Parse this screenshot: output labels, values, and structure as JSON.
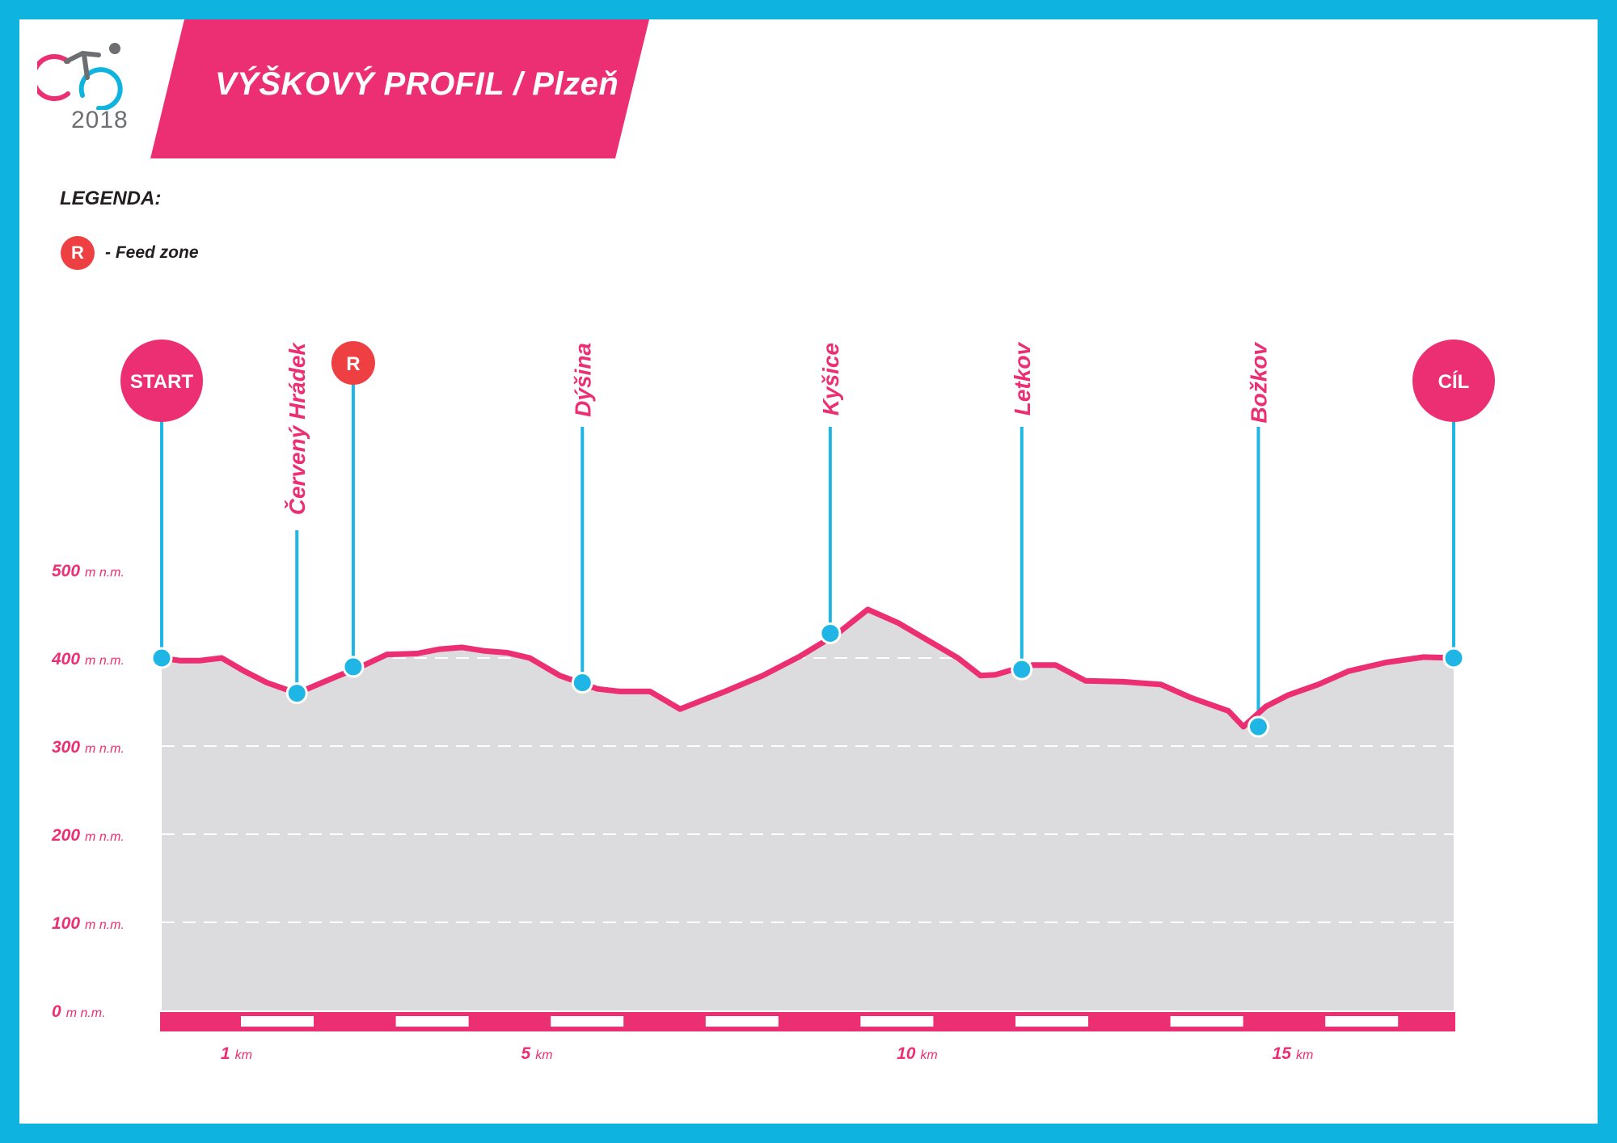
{
  "header": {
    "title": "VÝŠKOVÝ PROFIL / Plzeň",
    "logo_year": "2018"
  },
  "legend": {
    "title": "LEGENDA:",
    "feed_badge": "R",
    "feed_label": "- Feed zone"
  },
  "colors": {
    "frame": "#0fb3e0",
    "accent": "#ec2f73",
    "feed": "#ee3f43",
    "profile_fill": "#dcdcde",
    "marker": "#1fb6e6"
  },
  "chart_data": {
    "type": "area",
    "title": "VÝŠKOVÝ PROFIL / Plzeň",
    "xlabel": "km",
    "ylabel": "m n.m.",
    "xlim": [
      0,
      17.2
    ],
    "ylim": [
      0,
      500
    ],
    "y_ticks": [
      {
        "value": 0,
        "num": "0",
        "unit": "m n.m."
      },
      {
        "value": 100,
        "num": "100",
        "unit": "m n.m."
      },
      {
        "value": 200,
        "num": "200",
        "unit": "m n.m."
      },
      {
        "value": 300,
        "num": "300",
        "unit": "m n.m."
      },
      {
        "value": 400,
        "num": "400",
        "unit": "m n.m."
      },
      {
        "value": 500,
        "num": "500",
        "unit": "m n.m."
      }
    ],
    "x_ticks": [
      {
        "value": 1,
        "num": "1",
        "unit": "km"
      },
      {
        "value": 5,
        "num": "5",
        "unit": "km"
      },
      {
        "value": 10,
        "num": "10",
        "unit": "km"
      },
      {
        "value": 15,
        "num": "15",
        "unit": "km"
      }
    ],
    "grid": true,
    "profile": {
      "x": [
        0,
        0.25,
        0.5,
        0.8,
        1.1,
        1.4,
        1.8,
        2.3,
        2.7,
        3.0,
        3.4,
        3.7,
        4.0,
        4.3,
        4.6,
        4.9,
        5.3,
        5.8,
        6.1,
        6.5,
        6.9,
        7.2,
        7.5,
        8.0,
        8.5,
        9.0,
        9.4,
        9.8,
        10.2,
        10.6,
        10.9,
        11.1,
        11.3,
        11.6,
        11.9,
        12.3,
        12.8,
        13.3,
        13.7,
        14.2,
        14.4,
        14.7,
        15.0,
        15.4,
        15.8,
        16.3,
        16.8,
        17.2
      ],
      "y": [
        400,
        397,
        397,
        400,
        385,
        372,
        360,
        378,
        392,
        404,
        405,
        410,
        412,
        408,
        406,
        400,
        380,
        365,
        362,
        362,
        342,
        352,
        362,
        380,
        402,
        428,
        455,
        440,
        420,
        400,
        380,
        381,
        386,
        392,
        392,
        374,
        373,
        370,
        355,
        340,
        322,
        345,
        358,
        370,
        385,
        395,
        401,
        400
      ]
    },
    "waypoints": [
      {
        "name": "START",
        "km": 0,
        "elev": 400,
        "label_style": "circle"
      },
      {
        "name": "Červený Hrádek",
        "km": 1.8,
        "elev": 360,
        "label_style": "vertical"
      },
      {
        "name": "R",
        "km": 2.55,
        "elev": 390,
        "label_style": "feed"
      },
      {
        "name": "Dýšina",
        "km": 5.6,
        "elev": 372,
        "label_style": "vertical"
      },
      {
        "name": "Kyšice",
        "km": 8.9,
        "elev": 428,
        "label_style": "vertical"
      },
      {
        "name": "Letkov",
        "km": 11.45,
        "elev": 387,
        "label_style": "vertical"
      },
      {
        "name": "Božkov",
        "km": 14.6,
        "elev": 322,
        "label_style": "vertical"
      },
      {
        "name": "CÍL",
        "km": 17.2,
        "elev": 400,
        "label_style": "circle"
      }
    ]
  }
}
